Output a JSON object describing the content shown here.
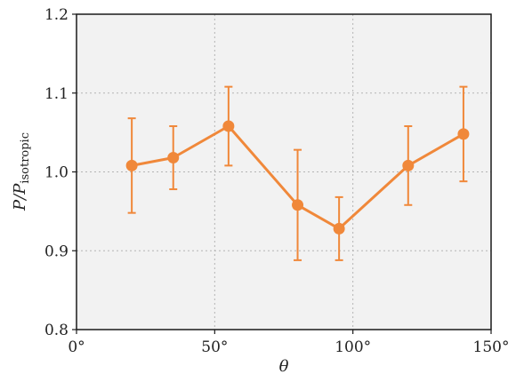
{
  "chart_data": {
    "type": "line",
    "title": "",
    "xlabel": "θ",
    "ylabel_main": "P/P",
    "ylabel_sub": "isotropic",
    "xlim": [
      0,
      150
    ],
    "ylim": [
      0.8,
      1.2
    ],
    "x_ticks": [
      0,
      50,
      100,
      150
    ],
    "x_tick_labels": [
      "0°",
      "50°",
      "100°",
      "150°"
    ],
    "y_ticks": [
      0.8,
      0.9,
      1.0,
      1.1,
      1.2
    ],
    "y_tick_labels": [
      "0.8",
      "0.9",
      "1.0",
      "1.1",
      "1.2"
    ],
    "grid": true,
    "series": [
      {
        "color": "#f0883a",
        "x": [
          20,
          35,
          55,
          80,
          95,
          120,
          140
        ],
        "y": [
          1.008,
          1.018,
          1.058,
          0.958,
          0.928,
          1.008,
          1.048
        ],
        "err_low": [
          0.948,
          0.978,
          1.008,
          0.888,
          0.888,
          0.958,
          0.988
        ],
        "err_high": [
          1.068,
          1.058,
          1.108,
          1.028,
          0.968,
          1.058,
          1.108
        ]
      }
    ]
  }
}
